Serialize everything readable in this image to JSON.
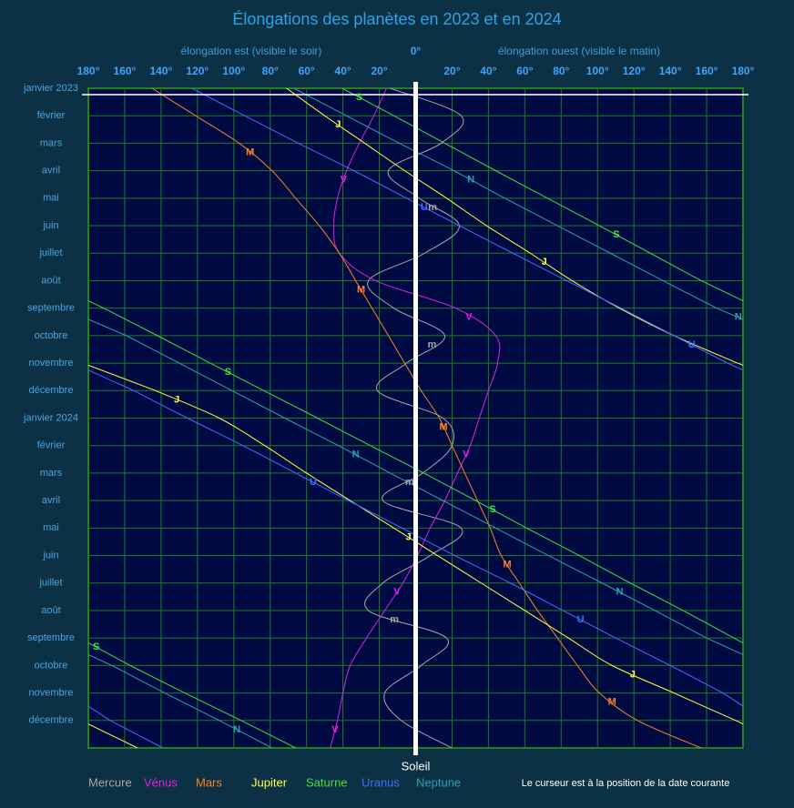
{
  "chart_data": {
    "type": "line",
    "title": "Élongations des planètes en 2023 et en 2024",
    "xlabel_left": "élongation est (visible le soir)",
    "xlabel_right": "élongation ouest (visible le matin)",
    "sun_label": "Soleil",
    "note": "Le curseur est à la position de la date courante",
    "categories": [
      "janvier 2023",
      "février",
      "mars",
      "avril",
      "mai",
      "juin",
      "juillet",
      "août",
      "septembre",
      "octobre",
      "novembre",
      "décembre",
      "janvier 2024",
      "février",
      "mars",
      "avril",
      "mai",
      "juin",
      "juillet",
      "août",
      "septembre",
      "octobre",
      "novembre",
      "décembre",
      null
    ],
    "xlim": [
      -180,
      180
    ],
    "xticks": [
      {
        "value": -180,
        "label": "180°"
      },
      {
        "value": -160,
        "label": "160°"
      },
      {
        "value": -140,
        "label": "140°"
      },
      {
        "value": -120,
        "label": "120°"
      },
      {
        "value": -100,
        "label": "100°"
      },
      {
        "value": -80,
        "label": "80°"
      },
      {
        "value": -60,
        "label": "60°"
      },
      {
        "value": -40,
        "label": "40°"
      },
      {
        "value": -20,
        "label": "20°"
      },
      {
        "value": 0,
        "label": "0°"
      },
      {
        "value": 20,
        "label": "20°"
      },
      {
        "value": 40,
        "label": "40°"
      },
      {
        "value": 60,
        "label": "60°"
      },
      {
        "value": 80,
        "label": "80°"
      },
      {
        "value": 100,
        "label": "100°"
      },
      {
        "value": 120,
        "label": "120°"
      },
      {
        "value": 140,
        "label": "140°"
      },
      {
        "value": 160,
        "label": "160°"
      },
      {
        "value": 180,
        "label": "180°"
      }
    ],
    "grid": true,
    "series": [
      {
        "name": "Mercure",
        "label": "m",
        "color": "#a8a8a8",
        "values": [
          -14,
          25,
          14,
          -15,
          2,
          24,
          5,
          -26,
          -12,
          16,
          -5,
          -21,
          15,
          20,
          4,
          -18,
          25,
          8,
          -18,
          -26,
          17,
          3,
          -17,
          -8,
          20
        ]
      },
      {
        "name": "Vénus",
        "label": "V",
        "color": "#e020e0",
        "values": [
          -16,
          -23,
          -31,
          -38,
          -43,
          -45,
          -42,
          -22,
          22,
          44,
          45,
          40,
          35,
          30,
          23,
          16,
          8,
          1,
          -7,
          -17,
          -27,
          -36,
          -40,
          -43,
          -47
        ]
      },
      {
        "name": "Mars",
        "label": "M",
        "color": "#ff8020",
        "values": [
          -145,
          -121,
          -97,
          -79,
          -66,
          -53,
          -42,
          -33,
          -24,
          -15,
          -6,
          3,
          13,
          20,
          27,
          34,
          41,
          47,
          57,
          67,
          78,
          89,
          101,
          122,
          157
        ]
      },
      {
        "name": "Jupiter",
        "label": "J",
        "color": "#ffff40",
        "values": [
          -71,
          -50,
          -28,
          -6,
          17,
          39,
          63,
          86,
          112,
          142,
          177,
          -143,
          -108,
          -83,
          -60,
          -36,
          -12,
          12,
          36,
          60,
          84,
          108,
          142,
          176,
          -153
        ]
      },
      {
        "name": "Saturne",
        "label": "S",
        "color": "#40e040",
        "values": [
          -40.5,
          -12,
          16,
          44,
          72.5,
          101,
          129,
          157,
          -171.5,
          -142,
          -113,
          -83.5,
          -54,
          -25,
          4.5,
          33,
          61,
          90,
          118,
          147,
          175,
          -157,
          -127,
          -96,
          -66
        ]
      },
      {
        "name": "Uranus",
        "label": "U",
        "color": "#4070ff",
        "values": [
          -123,
          -94,
          -64.5,
          -34,
          -5,
          24,
          53.5,
          83,
          113,
          142,
          171.5,
          -155,
          -125.5,
          -95,
          -66,
          -37,
          -7.5,
          21.5,
          52,
          81,
          110,
          140,
          169,
          -168,
          -139
        ]
      },
      {
        "name": "Neptune",
        "label": "N",
        "color": "#30a0b0",
        "values": [
          -67,
          -38,
          -9,
          21,
          49,
          78,
          107,
          136,
          165.5,
          -159,
          -130,
          -101,
          -72,
          -42.5,
          -14,
          15,
          44,
          73,
          102.5,
          131.5,
          160,
          -167,
          -138,
          -108,
          -79
        ]
      }
    ]
  }
}
